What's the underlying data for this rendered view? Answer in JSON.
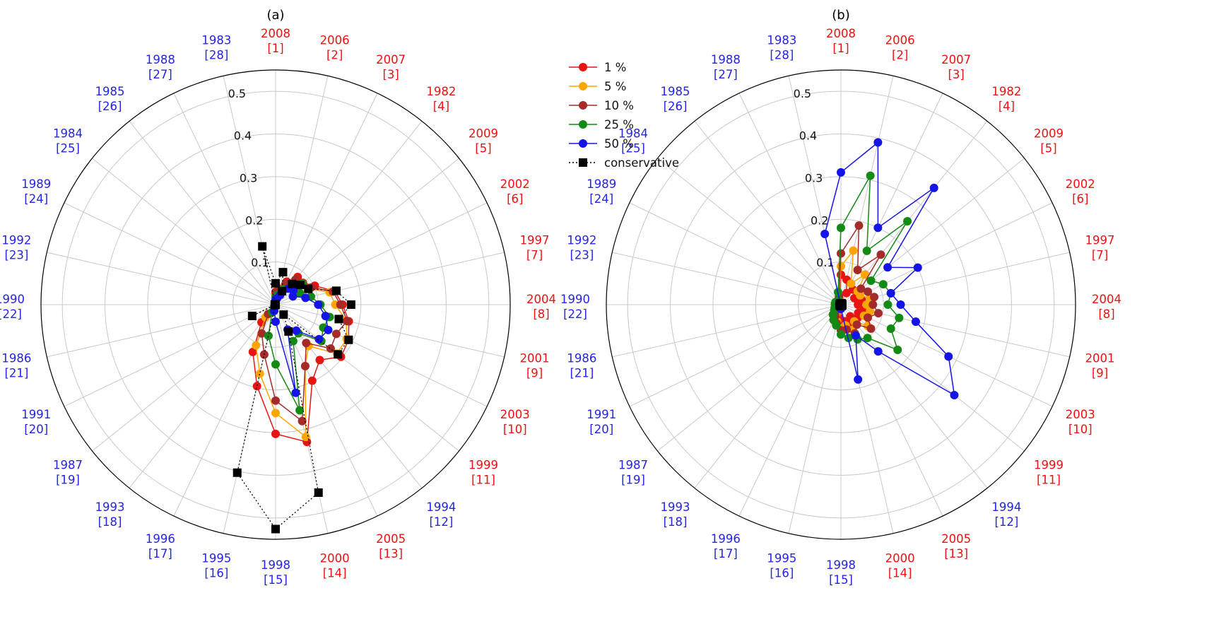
{
  "colors": {
    "year_blue": "#2424e6",
    "year_red": "#ee1111",
    "grid": "#c8c8c8",
    "axis": "#000000",
    "series": {
      "1 %": "#e81414",
      "5 %": "#ffa500",
      "10 %": "#a52a2a",
      "25 %": "#138a13",
      "50 %": "#1414e8",
      "conservative": "#000000"
    }
  },
  "legend": {
    "placement": "upper-right of panel (a)",
    "entries": [
      {
        "label": "1 %",
        "color": "#e81414",
        "marker": "circle",
        "line": "solid"
      },
      {
        "label": "5 %",
        "color": "#ffa500",
        "marker": "circle",
        "line": "solid"
      },
      {
        "label": "10 %",
        "color": "#a52a2a",
        "marker": "circle",
        "line": "solid"
      },
      {
        "label": "25 %",
        "color": "#138a13",
        "marker": "circle",
        "line": "solid"
      },
      {
        "label": "50 %",
        "color": "#1414e8",
        "marker": "circle",
        "line": "solid"
      },
      {
        "label": "conservative",
        "color": "#000000",
        "marker": "square",
        "line": "dotted"
      }
    ]
  },
  "chart_data": [
    {
      "panel": "(a)",
      "type": "radar",
      "title": "(a)",
      "r_ticks": [
        0.1,
        0.2,
        0.3,
        0.4,
        0.5
      ],
      "r_tick_labels": [
        "0.1",
        "0.2",
        "0.3",
        "0.4",
        "0.5"
      ],
      "rlim": [
        0,
        0.55
      ],
      "grid": true,
      "categories": [
        {
          "year": "2008",
          "rank": "[1]",
          "color": "red"
        },
        {
          "year": "2006",
          "rank": "[2]",
          "color": "red"
        },
        {
          "year": "2007",
          "rank": "[3]",
          "color": "red"
        },
        {
          "year": "1982",
          "rank": "[4]",
          "color": "red"
        },
        {
          "year": "2009",
          "rank": "[5]",
          "color": "red"
        },
        {
          "year": "2002",
          "rank": "[6]",
          "color": "red"
        },
        {
          "year": "1997",
          "rank": "[7]",
          "color": "red"
        },
        {
          "year": "2004",
          "rank": "[8]",
          "color": "red"
        },
        {
          "year": "2001",
          "rank": "[9]",
          "color": "red"
        },
        {
          "year": "2003",
          "rank": "[10]",
          "color": "red"
        },
        {
          "year": "1999",
          "rank": "[11]",
          "color": "red"
        },
        {
          "year": "1994",
          "rank": "[12]",
          "color": "blue"
        },
        {
          "year": "2005",
          "rank": "[13]",
          "color": "red"
        },
        {
          "year": "2000",
          "rank": "[14]",
          "color": "red"
        },
        {
          "year": "1998",
          "rank": "[15]",
          "color": "blue"
        },
        {
          "year": "1995",
          "rank": "[16]",
          "color": "blue"
        },
        {
          "year": "1996",
          "rank": "[17]",
          "color": "blue"
        },
        {
          "year": "1993",
          "rank": "[18]",
          "color": "blue"
        },
        {
          "year": "1987",
          "rank": "[19]",
          "color": "blue"
        },
        {
          "year": "1991",
          "rank": "[20]",
          "color": "blue"
        },
        {
          "year": "1986",
          "rank": "[21]",
          "color": "blue"
        },
        {
          "year": "1990",
          "rank": "[22]",
          "color": "blue"
        },
        {
          "year": "1992",
          "rank": "[23]",
          "color": "blue"
        },
        {
          "year": "1989",
          "rank": "[24]",
          "color": "blue"
        },
        {
          "year": "1984",
          "rank": "[25]",
          "color": "blue"
        },
        {
          "year": "1985",
          "rank": "[26]",
          "color": "blue"
        },
        {
          "year": "1988",
          "rank": "[27]",
          "color": "blue"
        },
        {
          "year": "1983",
          "rank": "[28]",
          "color": "blue"
        }
      ],
      "series": [
        {
          "name": "1 %",
          "values": [
            0.03,
            0.038,
            0.06,
            0.083,
            0.082,
            0.102,
            0.142,
            0.157,
            0.176,
            0.19,
            0.196,
            0.166,
            0.198,
            0.33,
            0.303,
            0.196,
            0.123,
            0.053,
            0,
            0,
            0,
            0,
            0,
            0,
            0,
            0,
            0,
            0
          ]
        },
        {
          "name": "5 %",
          "values": [
            0.022,
            0.028,
            0.05,
            0.072,
            0.067,
            0.086,
            0.13,
            0.14,
            0.17,
            0.185,
            0.184,
            0.124,
            0.16,
            0.318,
            0.254,
            0.166,
            0.106,
            0.038,
            0,
            0,
            0,
            0,
            0,
            0,
            0,
            0,
            0,
            0
          ]
        },
        {
          "name": "10 %",
          "values": [
            0.028,
            0.036,
            0.054,
            0.075,
            0.073,
            0.093,
            0.138,
            0.152,
            0.172,
            0.158,
            0.165,
            0.115,
            0.16,
            0.28,
            0.225,
            0.12,
            0.075,
            0.028,
            0,
            0,
            0,
            0,
            0,
            0,
            0,
            0,
            0,
            0
          ]
        },
        {
          "name": "25 %",
          "values": [
            0.018,
            0.024,
            0.04,
            0.062,
            0.08,
            0.063,
            0.085,
            0.105,
            0.13,
            0.124,
            0.137,
            0.086,
            0.095,
            0.254,
            0.14,
            0.075,
            0.02,
            0.005,
            0,
            0,
            0,
            0,
            0,
            0,
            0,
            0,
            0,
            0
          ]
        },
        {
          "name": "50 %",
          "values": [
            0.012,
            0.015,
            0.025,
            0.048,
            0.053,
            0.045,
            0.072,
            0.1,
            0.12,
            0.137,
            0.13,
            0.078,
            0.065,
            0.212,
            0.04,
            0.015,
            0.005,
            0.002,
            0,
            0,
            0,
            0,
            0,
            0,
            0,
            0,
            0,
            0
          ]
        },
        {
          "name": "conservative",
          "values": [
            0.05,
            0.078,
            0.035,
            0.062,
            0.074,
            0.085,
            0.146,
            0.177,
            0.152,
            0.19,
            0.187,
            0.03,
            0.07,
            0.452,
            0.526,
            0.404,
            0.001,
            0.001,
            0.001,
            0.061,
            0.001,
            0.002,
            0.001,
            0.001,
            0.001,
            0.001,
            0.001,
            0.14
          ]
        }
      ]
    },
    {
      "panel": "(b)",
      "type": "radar",
      "title": "(b)",
      "r_ticks": [
        0.1,
        0.2,
        0.3,
        0.4,
        0.5
      ],
      "r_tick_labels": [
        "0.1",
        "0.2",
        "0.3",
        "0.4",
        "0.5"
      ],
      "rlim": [
        0,
        0.55
      ],
      "grid": true,
      "categories": [
        {
          "year": "2008",
          "rank": "[1]",
          "color": "red"
        },
        {
          "year": "2006",
          "rank": "[2]",
          "color": "red"
        },
        {
          "year": "2007",
          "rank": "[3]",
          "color": "red"
        },
        {
          "year": "1982",
          "rank": "[4]",
          "color": "red"
        },
        {
          "year": "2009",
          "rank": "[5]",
          "color": "red"
        },
        {
          "year": "2002",
          "rank": "[6]",
          "color": "red"
        },
        {
          "year": "1997",
          "rank": "[7]",
          "color": "red"
        },
        {
          "year": "2004",
          "rank": "[8]",
          "color": "red"
        },
        {
          "year": "2001",
          "rank": "[9]",
          "color": "red"
        },
        {
          "year": "2003",
          "rank": "[10]",
          "color": "red"
        },
        {
          "year": "1999",
          "rank": "[11]",
          "color": "red"
        },
        {
          "year": "1994",
          "rank": "[12]",
          "color": "blue"
        },
        {
          "year": "2005",
          "rank": "[13]",
          "color": "red"
        },
        {
          "year": "2000",
          "rank": "[14]",
          "color": "red"
        },
        {
          "year": "1998",
          "rank": "[15]",
          "color": "blue"
        },
        {
          "year": "1995",
          "rank": "[16]",
          "color": "blue"
        },
        {
          "year": "1996",
          "rank": "[17]",
          "color": "blue"
        },
        {
          "year": "1993",
          "rank": "[18]",
          "color": "blue"
        },
        {
          "year": "1987",
          "rank": "[19]",
          "color": "blue"
        },
        {
          "year": "1991",
          "rank": "[20]",
          "color": "blue"
        },
        {
          "year": "1986",
          "rank": "[21]",
          "color": "blue"
        },
        {
          "year": "1990",
          "rank": "[22]",
          "color": "blue"
        },
        {
          "year": "1992",
          "rank": "[23]",
          "color": "blue"
        },
        {
          "year": "1989",
          "rank": "[24]",
          "color": "blue"
        },
        {
          "year": "1984",
          "rank": "[25]",
          "color": "blue"
        },
        {
          "year": "1985",
          "rank": "[26]",
          "color": "blue"
        },
        {
          "year": "1988",
          "rank": "[27]",
          "color": "blue"
        },
        {
          "year": "1983",
          "rank": "[28]",
          "color": "blue"
        }
      ],
      "series": [
        {
          "name": "1 %",
          "values": [
            0.07,
            0.06,
            0.03,
            0.045,
            0.05,
            0.035,
            0.05,
            0.04,
            0.055,
            0.045,
            0.05,
            0.035,
            0.05,
            0.04,
            0.045,
            0.03,
            0.02,
            0.015,
            0.012,
            0.01,
            0.008,
            0.008,
            0.008,
            0.008,
            0.006,
            0.006,
            0.006,
            0.01
          ]
        },
        {
          "name": "5 %",
          "values": [
            0.09,
            0.13,
            0.055,
            0.09,
            0.05,
            0.05,
            0.07,
            0.06,
            0.07,
            0.06,
            0.08,
            0.05,
            0.065,
            0.05,
            0.055,
            0.04,
            0.025,
            0.02,
            0.015,
            0.012,
            0.01,
            0.01,
            0.01,
            0.01,
            0.008,
            0.008,
            0.008,
            0.015
          ]
        },
        {
          "name": "10 %",
          "values": [
            0.12,
            0.19,
            0.09,
            0.15,
            0.06,
            0.07,
            0.08,
            0.075,
            0.09,
            0.07,
            0.09,
            0.06,
            0.075,
            0.06,
            0.06,
            0.045,
            0.03,
            0.02,
            0.018,
            0.015,
            0.012,
            0.012,
            0.012,
            0.012,
            0.01,
            0.01,
            0.01,
            0.02
          ]
        },
        {
          "name": "25 %",
          "values": [
            0.18,
            0.31,
            0.14,
            0.25,
            0.09,
            0.11,
            0.12,
            0.11,
            0.14,
            0.13,
            0.17,
            0.1,
            0.09,
            0.08,
            0.07,
            0.05,
            0.04,
            0.03,
            0.02,
            0.016,
            0.014,
            0.014,
            0.014,
            0.014,
            0.012,
            0.012,
            0.01,
            0.03
          ]
        },
        {
          "name": "50 %",
          "values": [
            0.31,
            0.39,
            0.2,
            0.35,
            0.14,
            0.2,
            0.12,
            0.14,
            0.18,
            0.28,
            0.34,
            0.14,
            0.08,
            0.18,
            0.01,
            0.008,
            0.006,
            0.005,
            0.004,
            0.004,
            0.004,
            0.004,
            0.004,
            0.004,
            0.004,
            0.004,
            0.004,
            0.17
          ]
        },
        {
          "name": "conservative",
          "values": [
            0.003,
            0.003,
            0.003,
            0.003,
            0.003,
            0.003,
            0.003,
            0.003,
            0.003,
            0.003,
            0.003,
            0.003,
            0.003,
            0.003,
            0.003,
            0.003,
            0.003,
            0.003,
            0.003,
            0.003,
            0.003,
            0.003,
            0.003,
            0.003,
            0.003,
            0.003,
            0.003,
            0.003
          ]
        }
      ]
    }
  ]
}
